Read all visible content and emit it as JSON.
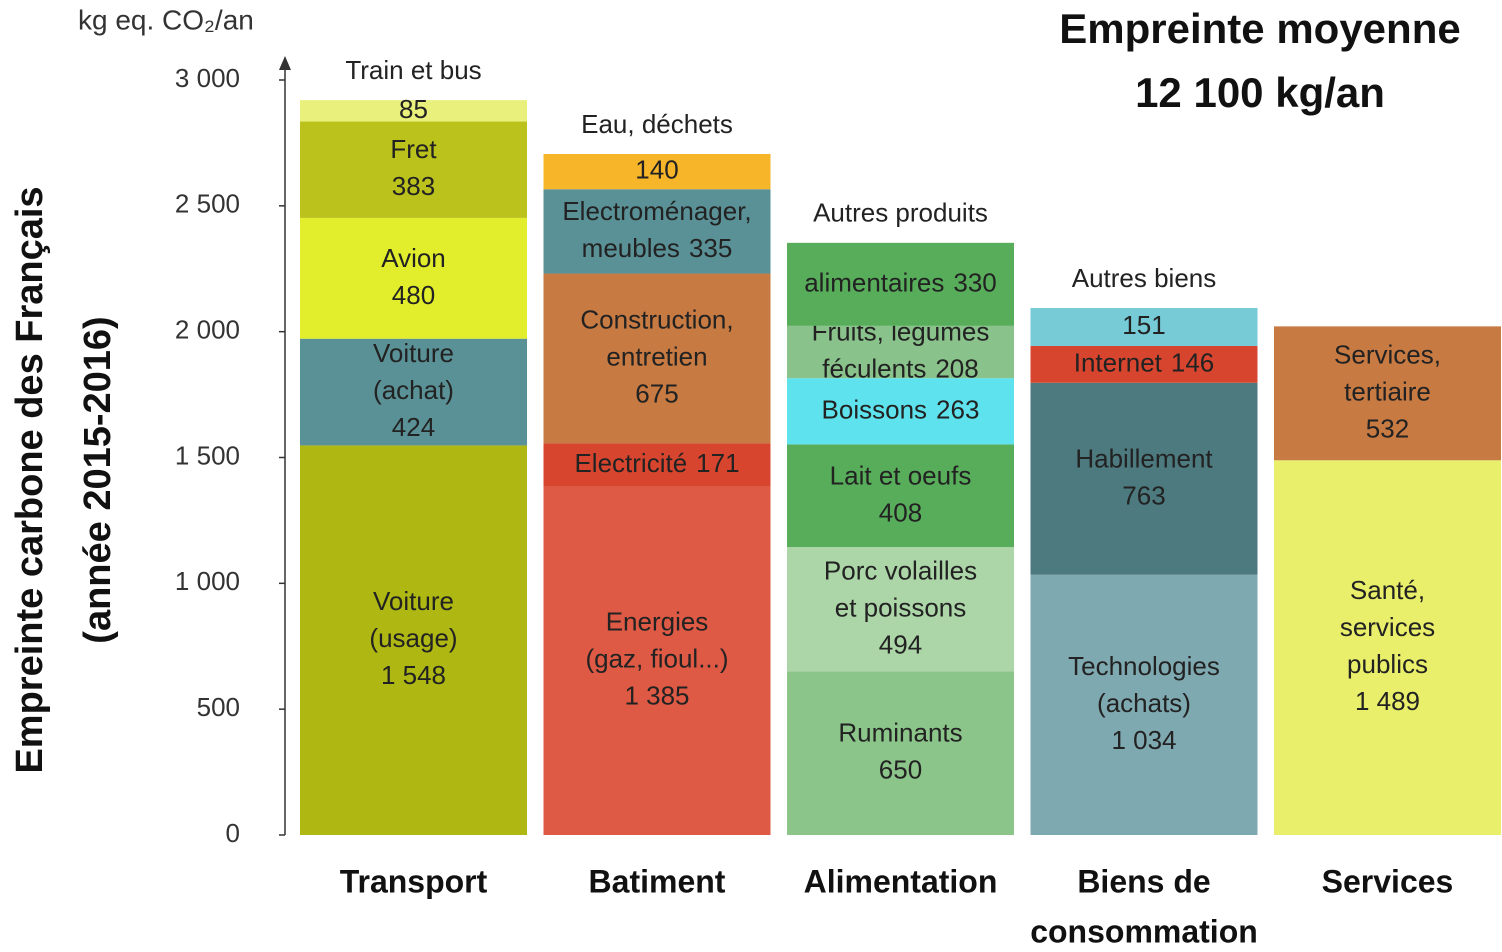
{
  "chart_data": {
    "type": "stacked-bar",
    "title": [
      "Empreinte moyenne",
      "12 100 kg/an"
    ],
    "y_unit": "kg eq. CO₂/an",
    "ylabel": [
      "Empreinte carbone des Français",
      "(année 2015-2016)"
    ],
    "ylim": [
      0,
      3000
    ],
    "yticks": [
      {
        "value": 0,
        "label": "0"
      },
      {
        "value": 500,
        "label": "500"
      },
      {
        "value": 1000,
        "label": "1 000"
      },
      {
        "value": 1500,
        "label": "1 500"
      },
      {
        "value": 2000,
        "label": "2 000"
      },
      {
        "value": 2500,
        "label": "2 500"
      },
      {
        "value": 3000,
        "label": "3 000"
      }
    ],
    "bars": [
      {
        "category": [
          "Transport"
        ],
        "segments": [
          {
            "label": [
              "Voiture",
              "(usage)"
            ],
            "value": 1548,
            "value_label": "1 548",
            "color": "#afb812"
          },
          {
            "label": [
              "Voiture",
              "(achat)"
            ],
            "value": 424,
            "color": "#5a9196"
          },
          {
            "label": [
              "Avion"
            ],
            "value": 480,
            "color": "#e2ee2c"
          },
          {
            "label": [
              "Fret"
            ],
            "value": 383,
            "color": "#bbc21c"
          },
          {
            "label": [
              "Train et bus"
            ],
            "value": 85,
            "color": "#e9f07c"
          }
        ]
      },
      {
        "category": [
          "Batiment"
        ],
        "segments": [
          {
            "label": [
              "Energies",
              "(gaz, fioul...)"
            ],
            "value": 1385,
            "value_label": "1 385",
            "color": "#de5a45"
          },
          {
            "label": [
              "Electricité"
            ],
            "value": 171,
            "color": "#d8452e"
          },
          {
            "label": [
              "Construction,",
              "entretien"
            ],
            "value": 675,
            "color": "#c77a42"
          },
          {
            "label": [
              "Electroménager,",
              "meubles"
            ],
            "value": 335,
            "color": "#5a9196"
          },
          {
            "label": [
              "Eau, déchets"
            ],
            "value": 140,
            "color": "#f7b52a"
          }
        ]
      },
      {
        "category": [
          "Alimentation"
        ],
        "segments": [
          {
            "label": [
              "Ruminants"
            ],
            "value": 650,
            "color": "#8cc58a"
          },
          {
            "label": [
              "Porc volailles",
              "et poissons"
            ],
            "value": 494,
            "color": "#acd6a7"
          },
          {
            "label": [
              "Lait et oeufs"
            ],
            "value": 408,
            "color": "#58ad5b"
          },
          {
            "label": [
              "Boissons"
            ],
            "value": 263,
            "color": "#5ee3ee"
          },
          {
            "label": [
              "Fruits, légumes",
              "féculents"
            ],
            "value": 208,
            "color": "#89c28a"
          },
          {
            "label": [
              "Autres produits",
              "alimentaires"
            ],
            "value": 330,
            "color": "#58ad5b"
          }
        ]
      },
      {
        "category": [
          "Biens de",
          "consommation"
        ],
        "segments": [
          {
            "label": [
              "Technologies",
              "(achats)"
            ],
            "value": 1034,
            "value_label": "1 034",
            "color": "#7fa9b0"
          },
          {
            "label": [
              "Habillement"
            ],
            "value": 763,
            "color": "#4d7a7f"
          },
          {
            "label": [
              "Internet"
            ],
            "value": 146,
            "color": "#d8452e"
          },
          {
            "label": [
              "Autres biens"
            ],
            "value": 151,
            "color": "#76cbd6"
          }
        ]
      },
      {
        "category": [
          "Services"
        ],
        "segments": [
          {
            "label": [
              "Santé,",
              "services",
              "publics"
            ],
            "value": 1489,
            "value_label": "1 489",
            "color": "#e9ef6a"
          },
          {
            "label": [
              "Services,",
              "tertiaire"
            ],
            "value": 532,
            "color": "#c77a42"
          }
        ]
      }
    ]
  }
}
